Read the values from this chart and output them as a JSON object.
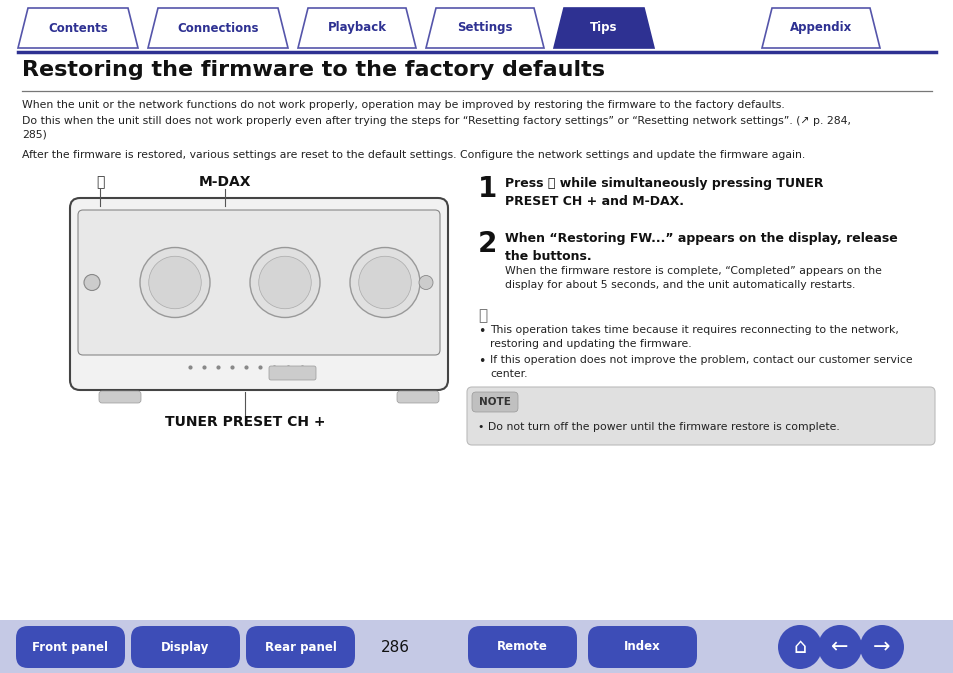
{
  "tab_labels": [
    "Contents",
    "Connections",
    "Playback",
    "Settings",
    "Tips",
    "Appendix"
  ],
  "active_tab": 4,
  "tab_color_active": "#2e3192",
  "tab_color_inactive_bg": "#ffffff",
  "tab_color_inactive_border": "#5555aa",
  "tab_text_color_active": "#ffffff",
  "tab_text_color_inactive": "#2e3192",
  "title": "Restoring the firmware to the factory defaults",
  "body_color": "#ffffff",
  "text_color": "#222222",
  "accent_color": "#2e3192",
  "para1": "When the unit or the network functions do not work properly, operation may be improved by restoring the firmware to the factory defaults.",
  "para2": "Do this when the unit still does not work properly even after trying the steps for “Resetting factory settings” or “Resetting network settings”. (↗ p. 284,\n285)",
  "para3": "After the firmware is restored, various settings are reset to the default settings. Configure the network settings and update the firmware again.",
  "step1_num": "1",
  "step1_bold": "Press ⏻ while simultaneously pressing TUNER\nPRESET CH + and M-DAX.",
  "step2_num": "2",
  "step2_bold": "When “Restoring FW...” appears on the display, release\nthe buttons.",
  "step2_sub": "When the firmware restore is complete, “Completed” appears on the\ndisplay for about 5 seconds, and the unit automatically restarts.",
  "bullet1": "This operation takes time because it requires reconnecting to the network,\nrestoring and updating the firmware.",
  "bullet2": "If this operation does not improve the problem, contact our customer service\ncenter.",
  "note_label": "NOTE",
  "note_text": "• Do not turn off the power until the firmware restore is complete.",
  "btn_labels": [
    "Front panel",
    "Display",
    "Rear panel",
    "Remote",
    "Index"
  ],
  "page_num": "286",
  "button_color": "#3d4db7",
  "label_power": "⏻",
  "label_mdax": "M-DAX",
  "label_tuner": "TUNER PRESET CH +"
}
